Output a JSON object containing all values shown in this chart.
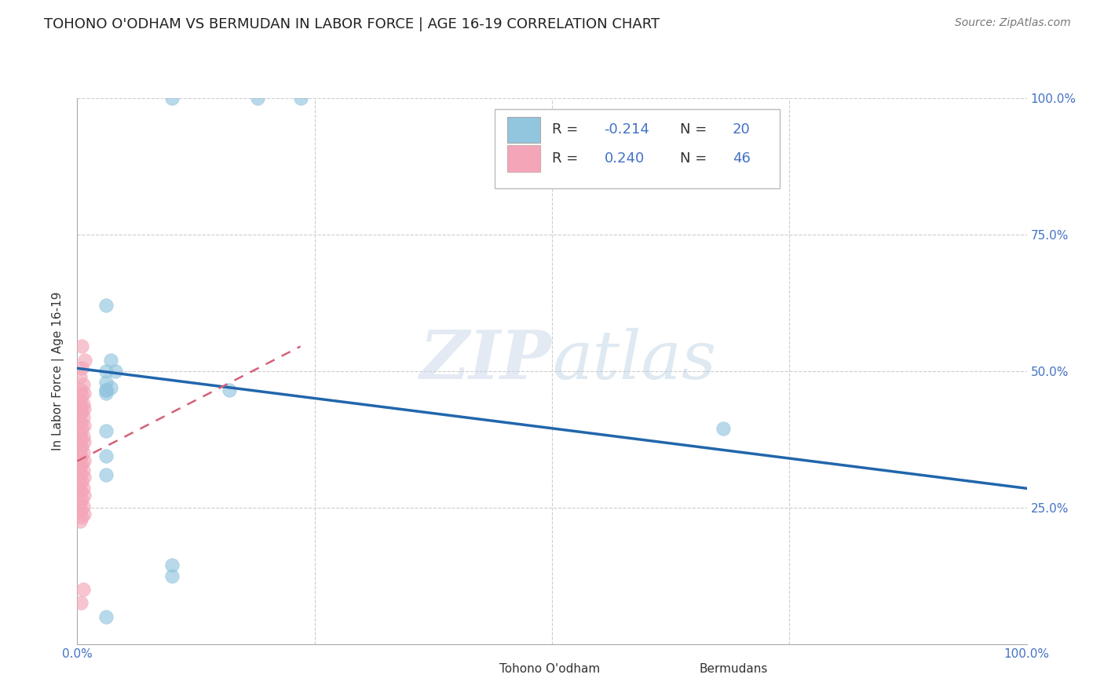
{
  "title": "TOHONO O'ODHAM VS BERMUDAN IN LABOR FORCE | AGE 16-19 CORRELATION CHART",
  "source": "Source: ZipAtlas.com",
  "ylabel": "In Labor Force | Age 16-19",
  "xlim": [
    0.0,
    1.0
  ],
  "ylim": [
    0.0,
    1.0
  ],
  "right_yticklabels": [
    "",
    "25.0%",
    "50.0%",
    "75.0%",
    "100.0%"
  ],
  "watermark": "ZIPatlas",
  "legend_R1": "-0.214",
  "legend_N1": "20",
  "legend_R2": "0.240",
  "legend_N2": "46",
  "blue_color": "#92c5de",
  "pink_color": "#f4a6b8",
  "trend_blue": "#2166ac",
  "trend_pink": "#d6607a",
  "blue_scatter_x": [
    0.1,
    0.19,
    0.235,
    0.03,
    0.035,
    0.04,
    0.03,
    0.035,
    0.03,
    0.16,
    0.03,
    0.68,
    0.03,
    0.03,
    0.1,
    0.1,
    0.03,
    0.03,
    0.03,
    0.03
  ],
  "blue_scatter_y": [
    1.0,
    1.0,
    1.0,
    0.62,
    0.52,
    0.5,
    0.48,
    0.47,
    0.39,
    0.465,
    0.31,
    0.395,
    0.465,
    0.345,
    0.145,
    0.125,
    0.46,
    0.5,
    0.465,
    0.05
  ],
  "pink_scatter_x": [
    0.005,
    0.008,
    0.005,
    0.003,
    0.006,
    0.004,
    0.007,
    0.005,
    0.003,
    0.006,
    0.004,
    0.007,
    0.005,
    0.003,
    0.006,
    0.004,
    0.007,
    0.005,
    0.003,
    0.006,
    0.004,
    0.007,
    0.005,
    0.003,
    0.006,
    0.004,
    0.007,
    0.005,
    0.003,
    0.006,
    0.004,
    0.007,
    0.005,
    0.003,
    0.006,
    0.004,
    0.007,
    0.005,
    0.003,
    0.006,
    0.004,
    0.007,
    0.005,
    0.003,
    0.006,
    0.004
  ],
  "pink_scatter_y": [
    0.545,
    0.52,
    0.505,
    0.49,
    0.475,
    0.465,
    0.46,
    0.455,
    0.445,
    0.44,
    0.435,
    0.43,
    0.425,
    0.42,
    0.415,
    0.405,
    0.4,
    0.395,
    0.385,
    0.38,
    0.375,
    0.37,
    0.362,
    0.356,
    0.35,
    0.343,
    0.336,
    0.33,
    0.325,
    0.318,
    0.312,
    0.305,
    0.298,
    0.292,
    0.286,
    0.28,
    0.272,
    0.265,
    0.258,
    0.252,
    0.245,
    0.238,
    0.232,
    0.225,
    0.1,
    0.075
  ],
  "blue_trend_x": [
    0.0,
    1.0
  ],
  "blue_trend_y": [
    0.505,
    0.285
  ],
  "pink_trend_x": [
    0.0,
    0.235
  ],
  "pink_trend_y": [
    0.335,
    0.545
  ],
  "background_color": "#ffffff",
  "grid_color": "#c8c8c8",
  "title_color": "#222222",
  "axis_label_color": "#4472c4",
  "tick_fontsize": 11,
  "label_fontsize": 11
}
